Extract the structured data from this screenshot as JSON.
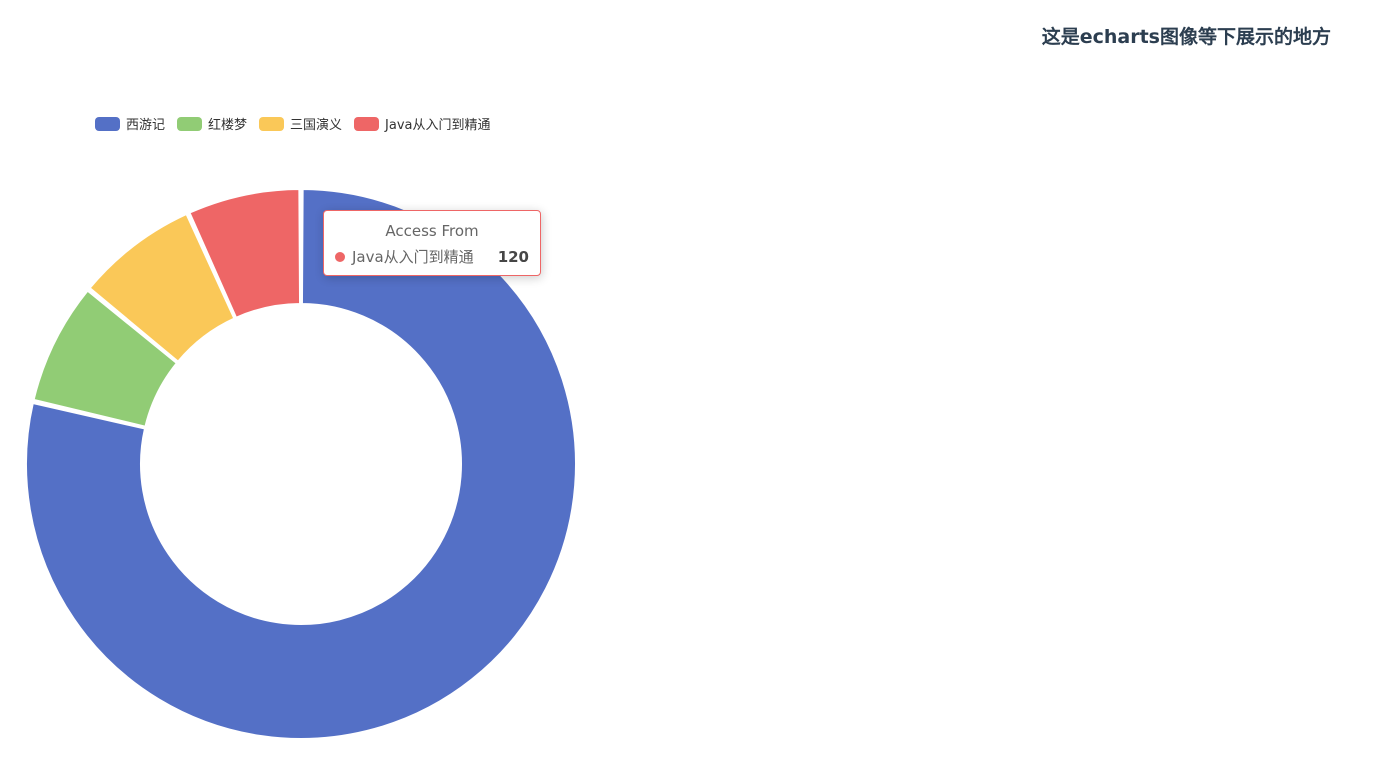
{
  "header": {
    "heading": "这是echarts图像等下展示的地方"
  },
  "chart_data": {
    "type": "pie",
    "variant": "donut",
    "categories": [
      "西游记",
      "红楼梦",
      "三国演义",
      "Java从入门到精通"
    ],
    "values": [
      1400,
      130,
      130,
      120
    ],
    "colors": [
      "#5470c6",
      "#91cc75",
      "#fac858",
      "#ee6666"
    ],
    "legend_position": "top-left",
    "tooltip": {
      "title": "Access From",
      "name": "Java从入门到精通",
      "value": "120",
      "color": "#ee6666"
    }
  }
}
